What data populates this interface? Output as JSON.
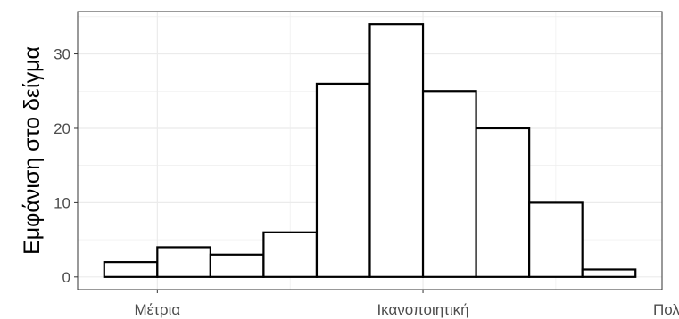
{
  "chart_data": {
    "type": "bar",
    "subtype": "histogram",
    "title": "",
    "xlabel": "",
    "ylabel": "Εμφάνιση στο δείγμα",
    "bins": [
      {
        "x": -1.0,
        "value": 2
      },
      {
        "x": -0.6,
        "value": 4
      },
      {
        "x": -0.2,
        "value": 3
      },
      {
        "x": 0.2,
        "value": 6
      },
      {
        "x": 0.6,
        "value": 26
      },
      {
        "x": 1.0,
        "value": 34
      },
      {
        "x": 1.4,
        "value": 25
      },
      {
        "x": 1.8,
        "value": 20
      },
      {
        "x": 2.2,
        "value": 10
      },
      {
        "x": 2.6,
        "value": 1
      }
    ],
    "bin_width": 0.4,
    "xlim": [
      -1.4,
      3.0
    ],
    "ylim": [
      -1.7,
      35.7
    ],
    "x_ticks": [
      {
        "x": -0.8,
        "label": "Μέτρια"
      },
      {
        "x": 1.2,
        "label": "Ικανοποιητική"
      },
      {
        "x": 3.2,
        "label": "Πολύ καλή"
      }
    ],
    "y_ticks": [
      0,
      10,
      20,
      30
    ],
    "grid": true,
    "legend": "none",
    "colors": {
      "bar_fill": "#ffffff",
      "bar_stroke": "#000000",
      "panel_border": "#333333",
      "grid": "#ebebeb",
      "tick_text": "#4d4d4d"
    }
  }
}
